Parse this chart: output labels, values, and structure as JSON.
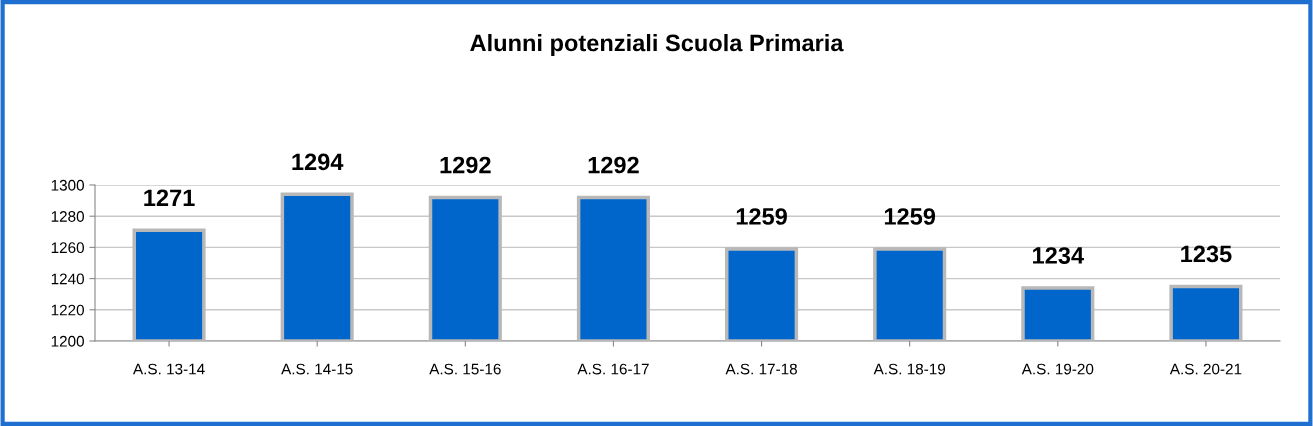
{
  "chart_data": {
    "type": "bar",
    "title": "Alunni potenziali Scuola Primaria",
    "categories": [
      "A.S. 13-14",
      "A.S. 14-15",
      "A.S. 15-16",
      "A.S. 16-17",
      "A.S. 17-18",
      "A.S. 18-19",
      "A.S. 19-20",
      "A.S. 20-21"
    ],
    "values": [
      1271,
      1294,
      1292,
      1292,
      1259,
      1259,
      1234,
      1235
    ],
    "color": "#0066cc",
    "ylim": [
      1200,
      1300
    ],
    "yticks": [
      1200,
      1220,
      1240,
      1260,
      1280,
      1300
    ],
    "grid": "y",
    "data_labels": true
  }
}
